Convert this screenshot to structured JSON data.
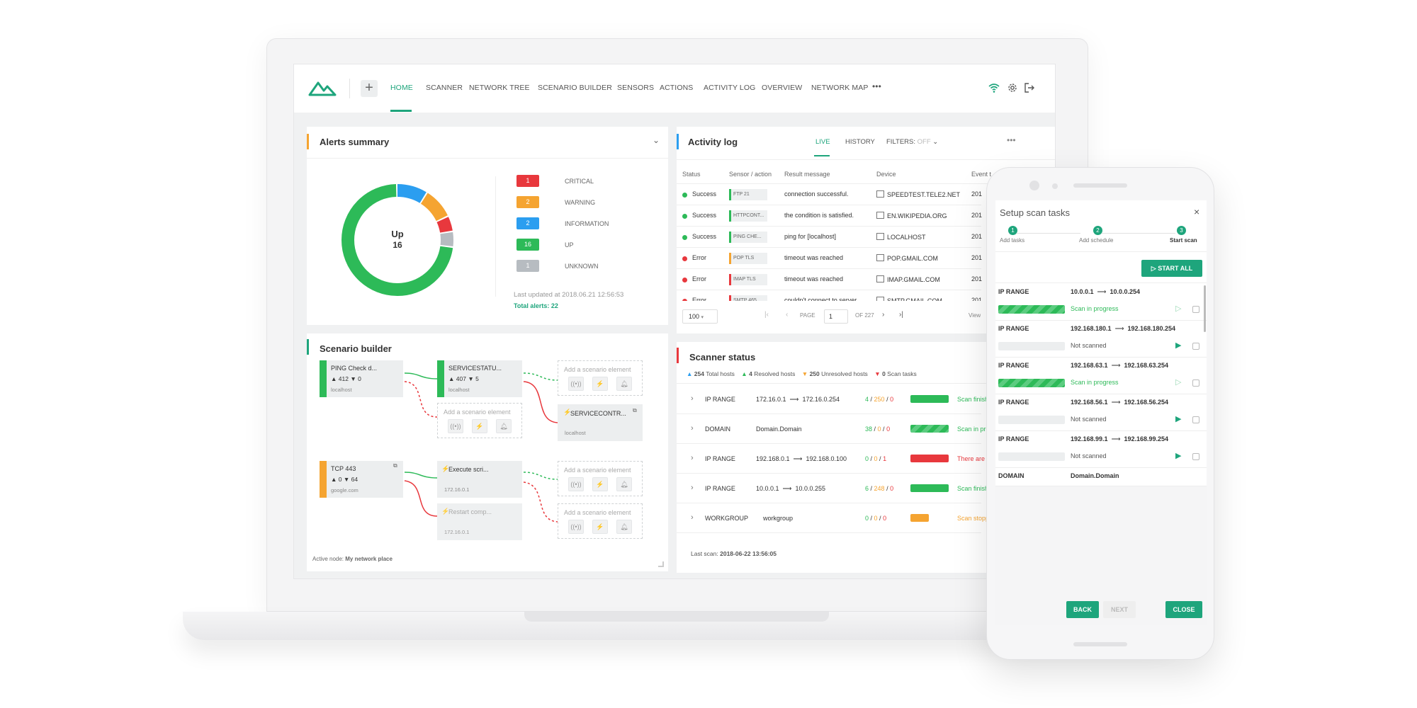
{
  "colors": {
    "accent": "#1ea57c",
    "critical": "#e8383d",
    "warning": "#f5a431",
    "information": "#2b9ef0",
    "up": "#2dba58",
    "unknown": "#b7bcc1"
  },
  "nav": {
    "items": [
      "HOME",
      "SCANNER",
      "NETWORK TREE",
      "SCENARIO BUILDER",
      "SENSORS",
      "ACTIONS",
      "ACTIVITY LOG",
      "OVERVIEW",
      "NETWORK MAP"
    ],
    "more": "•••",
    "plus": "+"
  },
  "alerts": {
    "title": "Alerts summary",
    "center_label": "Up",
    "center_value": "16",
    "legend": [
      {
        "count": "1",
        "label": "CRITICAL"
      },
      {
        "count": "2",
        "label": "WARNING"
      },
      {
        "count": "2",
        "label": "INFORMATION"
      },
      {
        "count": "16",
        "label": "UP"
      },
      {
        "count": "1",
        "label": "UNKNOWN"
      }
    ],
    "last_updated": "Last updated at 2018.06.21 12:56:53",
    "total": "Total alerts: 22"
  },
  "scenario": {
    "title": "Scenario builder",
    "add_label": "Add a scenario element",
    "nodes": [
      {
        "title": "PING Check d...",
        "stats": "▲ 412 ▼ 0",
        "host": "localhost"
      },
      {
        "title": "SERVICESTATU...",
        "stats": "▲ 407 ▼ 5",
        "host": "localhost"
      },
      {
        "title": "SERVICECONTR...",
        "host": "localhost"
      },
      {
        "title": "TCP 443",
        "stats": "▲ 0 ▼ 64",
        "host": "google.com"
      },
      {
        "title": "Execute scri...",
        "host": "172.16.0.1"
      },
      {
        "title": "Restart comp...",
        "host": "172.16.0.1"
      }
    ],
    "active_label": "Active node:",
    "active_value": "My network place"
  },
  "activity": {
    "title": "Activity log",
    "tabs": [
      "LIVE",
      "HISTORY"
    ],
    "filters_label": "FILTERS:",
    "filters_value": "OFF",
    "headers": [
      "Status",
      "Sensor / action",
      "Result message",
      "Device",
      "Event t"
    ],
    "rows": [
      {
        "status": "Success",
        "sensor": "FTP 21",
        "msg": "connection successful.",
        "device": "SPEEDTEST.TELE2.NET",
        "time": "201"
      },
      {
        "status": "Success",
        "sensor": "HTTPCONT...",
        "msg": "the condition is satisfied.",
        "device": "EN.WIKIPEDIA.ORG",
        "time": "201"
      },
      {
        "status": "Success",
        "sensor": "PING CHE...",
        "msg": "ping for [localhost]",
        "device": "LOCALHOST",
        "time": "201"
      },
      {
        "status": "Error",
        "sensor": "POP TLS",
        "msg": "timeout was reached",
        "device": "POP.GMAIL.COM",
        "time": "201"
      },
      {
        "status": "Error",
        "sensor": "IMAP TLS",
        "msg": "timeout was reached",
        "device": "IMAP.GMAIL.COM",
        "time": "201"
      },
      {
        "status": "Error",
        "sensor": "SMTP 465",
        "msg": "couldn't connect to server",
        "device": "SMTP.GMAIL.COM",
        "time": "201"
      }
    ],
    "page_size": "100",
    "page_label": "PAGE",
    "page_value": "1",
    "page_of": "OF 227",
    "view": "View"
  },
  "scanner": {
    "title": "Scanner status",
    "summary": [
      {
        "value": "254",
        "label": "Total hosts"
      },
      {
        "value": "4",
        "label": "Resolved hosts"
      },
      {
        "value": "250",
        "label": "Unresolved hosts"
      },
      {
        "value": "0",
        "label": "Scan tasks"
      }
    ],
    "rows": [
      {
        "type": "IP RANGE",
        "from": "172.16.0.1",
        "to": "172.16.0.254",
        "a": "4",
        "b": "250",
        "c": "0",
        "status": "Scan finished"
      },
      {
        "type": "DOMAIN",
        "from": "Domain.Domain",
        "to": "",
        "a": "38",
        "b": "0",
        "c": "0",
        "status": "Scan in progress"
      },
      {
        "type": "IP RANGE",
        "from": "192.168.0.1",
        "to": "192.168.0.100",
        "a": "0",
        "b": "0",
        "c": "1",
        "status": "There are errors"
      },
      {
        "type": "IP RANGE",
        "from": "10.0.0.1",
        "to": "10.0.0.255",
        "a": "6",
        "b": "248",
        "c": "0",
        "status": "Scan finished"
      },
      {
        "type": "WORKGROUP",
        "from": "workgroup",
        "to": "",
        "a": "0",
        "b": "0",
        "c": "0",
        "status": "Scan stopped"
      }
    ],
    "last_scan_label": "Last scan:",
    "last_scan_value": "2018-06-22 13:56:05"
  },
  "phone": {
    "title": "Setup scan tasks",
    "steps": [
      {
        "num": "1",
        "label": "Add tasks"
      },
      {
        "num": "2",
        "label": "Add schedule"
      },
      {
        "num": "3",
        "label": "Start scan"
      }
    ],
    "start_all": "START ALL",
    "tasks": [
      {
        "type": "IP RANGE",
        "from": "10.0.0.1",
        "to": "10.0.0.254",
        "status": "Scan in progress",
        "progress": 1.0
      },
      {
        "type": "IP RANGE",
        "from": "192.168.180.1",
        "to": "192.168.180.254",
        "status": "Not scanned",
        "progress": 0
      },
      {
        "type": "IP RANGE",
        "from": "192.168.63.1",
        "to": "192.168.63.254",
        "status": "Scan in progress",
        "progress": 1.0
      },
      {
        "type": "IP RANGE",
        "from": "192.168.56.1",
        "to": "192.168.56.254",
        "status": "Not scanned",
        "progress": 0
      },
      {
        "type": "IP RANGE",
        "from": "192.168.99.1",
        "to": "192.168.99.254",
        "status": "Not scanned",
        "progress": 0
      }
    ],
    "last_type": "DOMAIN",
    "last_value": "Domain.Domain",
    "back": "BACK",
    "next": "NEXT",
    "close": "CLOSE"
  }
}
